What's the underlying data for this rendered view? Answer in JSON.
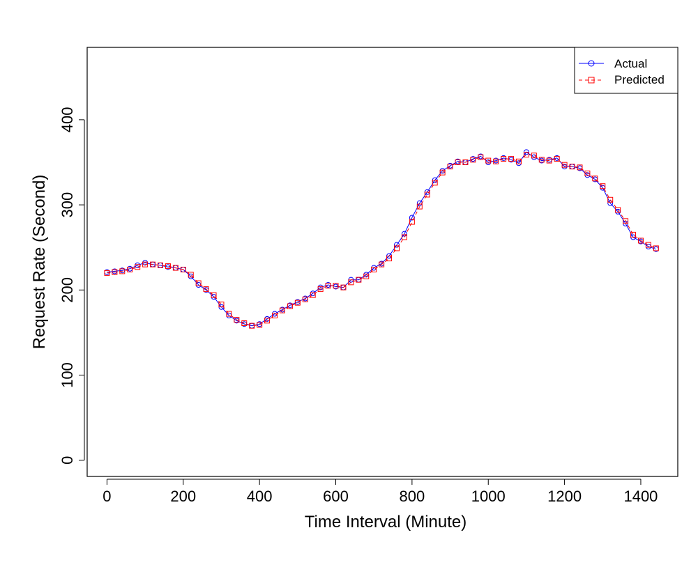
{
  "chart_data": {
    "type": "line",
    "title": "",
    "xlabel": "Time Interval (Minute)",
    "ylabel": "Request Rate (Second)",
    "xlim": [
      -52,
      1497
    ],
    "ylim": [
      -19,
      485
    ],
    "xticks": [
      0,
      200,
      400,
      600,
      800,
      1000,
      1200,
      1400
    ],
    "yticks": [
      0,
      100,
      200,
      300,
      400
    ],
    "legend": "top-right",
    "grid": false,
    "series": [
      {
        "name": "Actual",
        "color": "#0000ff",
        "marker": "circle",
        "line_style": "solid",
        "x": [
          0,
          20,
          40,
          60,
          80,
          100,
          120,
          140,
          160,
          180,
          200,
          220,
          240,
          260,
          280,
          300,
          320,
          340,
          360,
          380,
          400,
          420,
          440,
          460,
          480,
          500,
          520,
          540,
          560,
          580,
          600,
          620,
          640,
          660,
          680,
          700,
          720,
          740,
          760,
          780,
          800,
          820,
          840,
          860,
          880,
          900,
          920,
          940,
          960,
          980,
          1000,
          1020,
          1040,
          1060,
          1080,
          1100,
          1120,
          1140,
          1160,
          1180,
          1200,
          1220,
          1240,
          1260,
          1280,
          1300,
          1320,
          1340,
          1360,
          1380,
          1400,
          1420,
          1440
        ],
        "y": [
          221,
          222,
          223,
          225,
          229,
          232,
          230,
          229,
          227,
          226,
          224,
          216,
          206,
          200,
          192,
          180,
          170,
          164,
          160,
          158,
          160,
          166,
          172,
          177,
          182,
          186,
          190,
          196,
          203,
          206,
          204,
          203,
          212,
          212,
          218,
          226,
          231,
          240,
          253,
          266,
          285,
          302,
          315,
          329,
          340,
          346,
          351,
          350,
          354,
          357,
          350,
          352,
          355,
          353,
          349,
          362,
          356,
          352,
          353,
          355,
          345,
          345,
          343,
          335,
          330,
          320,
          302,
          292,
          278,
          262,
          257,
          251,
          248
        ]
      },
      {
        "name": "Predicted",
        "color": "#ff0000",
        "marker": "square",
        "line_style": "dashed",
        "x": [
          0,
          20,
          40,
          60,
          80,
          100,
          120,
          140,
          160,
          180,
          200,
          220,
          240,
          260,
          280,
          300,
          320,
          340,
          360,
          380,
          400,
          420,
          440,
          460,
          480,
          500,
          520,
          540,
          560,
          580,
          600,
          620,
          640,
          660,
          680,
          700,
          720,
          740,
          760,
          780,
          800,
          820,
          840,
          860,
          880,
          900,
          920,
          940,
          960,
          980,
          1000,
          1020,
          1040,
          1060,
          1080,
          1100,
          1120,
          1140,
          1160,
          1180,
          1200,
          1220,
          1240,
          1260,
          1280,
          1300,
          1320,
          1340,
          1360,
          1380,
          1400,
          1420,
          1440
        ],
        "y": [
          220,
          221,
          222,
          224,
          227,
          230,
          230,
          229,
          228,
          226,
          224,
          218,
          208,
          201,
          194,
          183,
          172,
          165,
          161,
          158,
          159,
          164,
          170,
          176,
          181,
          185,
          189,
          194,
          201,
          205,
          205,
          203,
          209,
          212,
          216,
          224,
          230,
          237,
          249,
          262,
          280,
          298,
          312,
          326,
          338,
          345,
          350,
          350,
          353,
          356,
          352,
          351,
          354,
          354,
          351,
          359,
          358,
          353,
          352,
          354,
          347,
          345,
          344,
          337,
          331,
          322,
          306,
          294,
          281,
          265,
          258,
          253,
          249
        ]
      }
    ]
  }
}
